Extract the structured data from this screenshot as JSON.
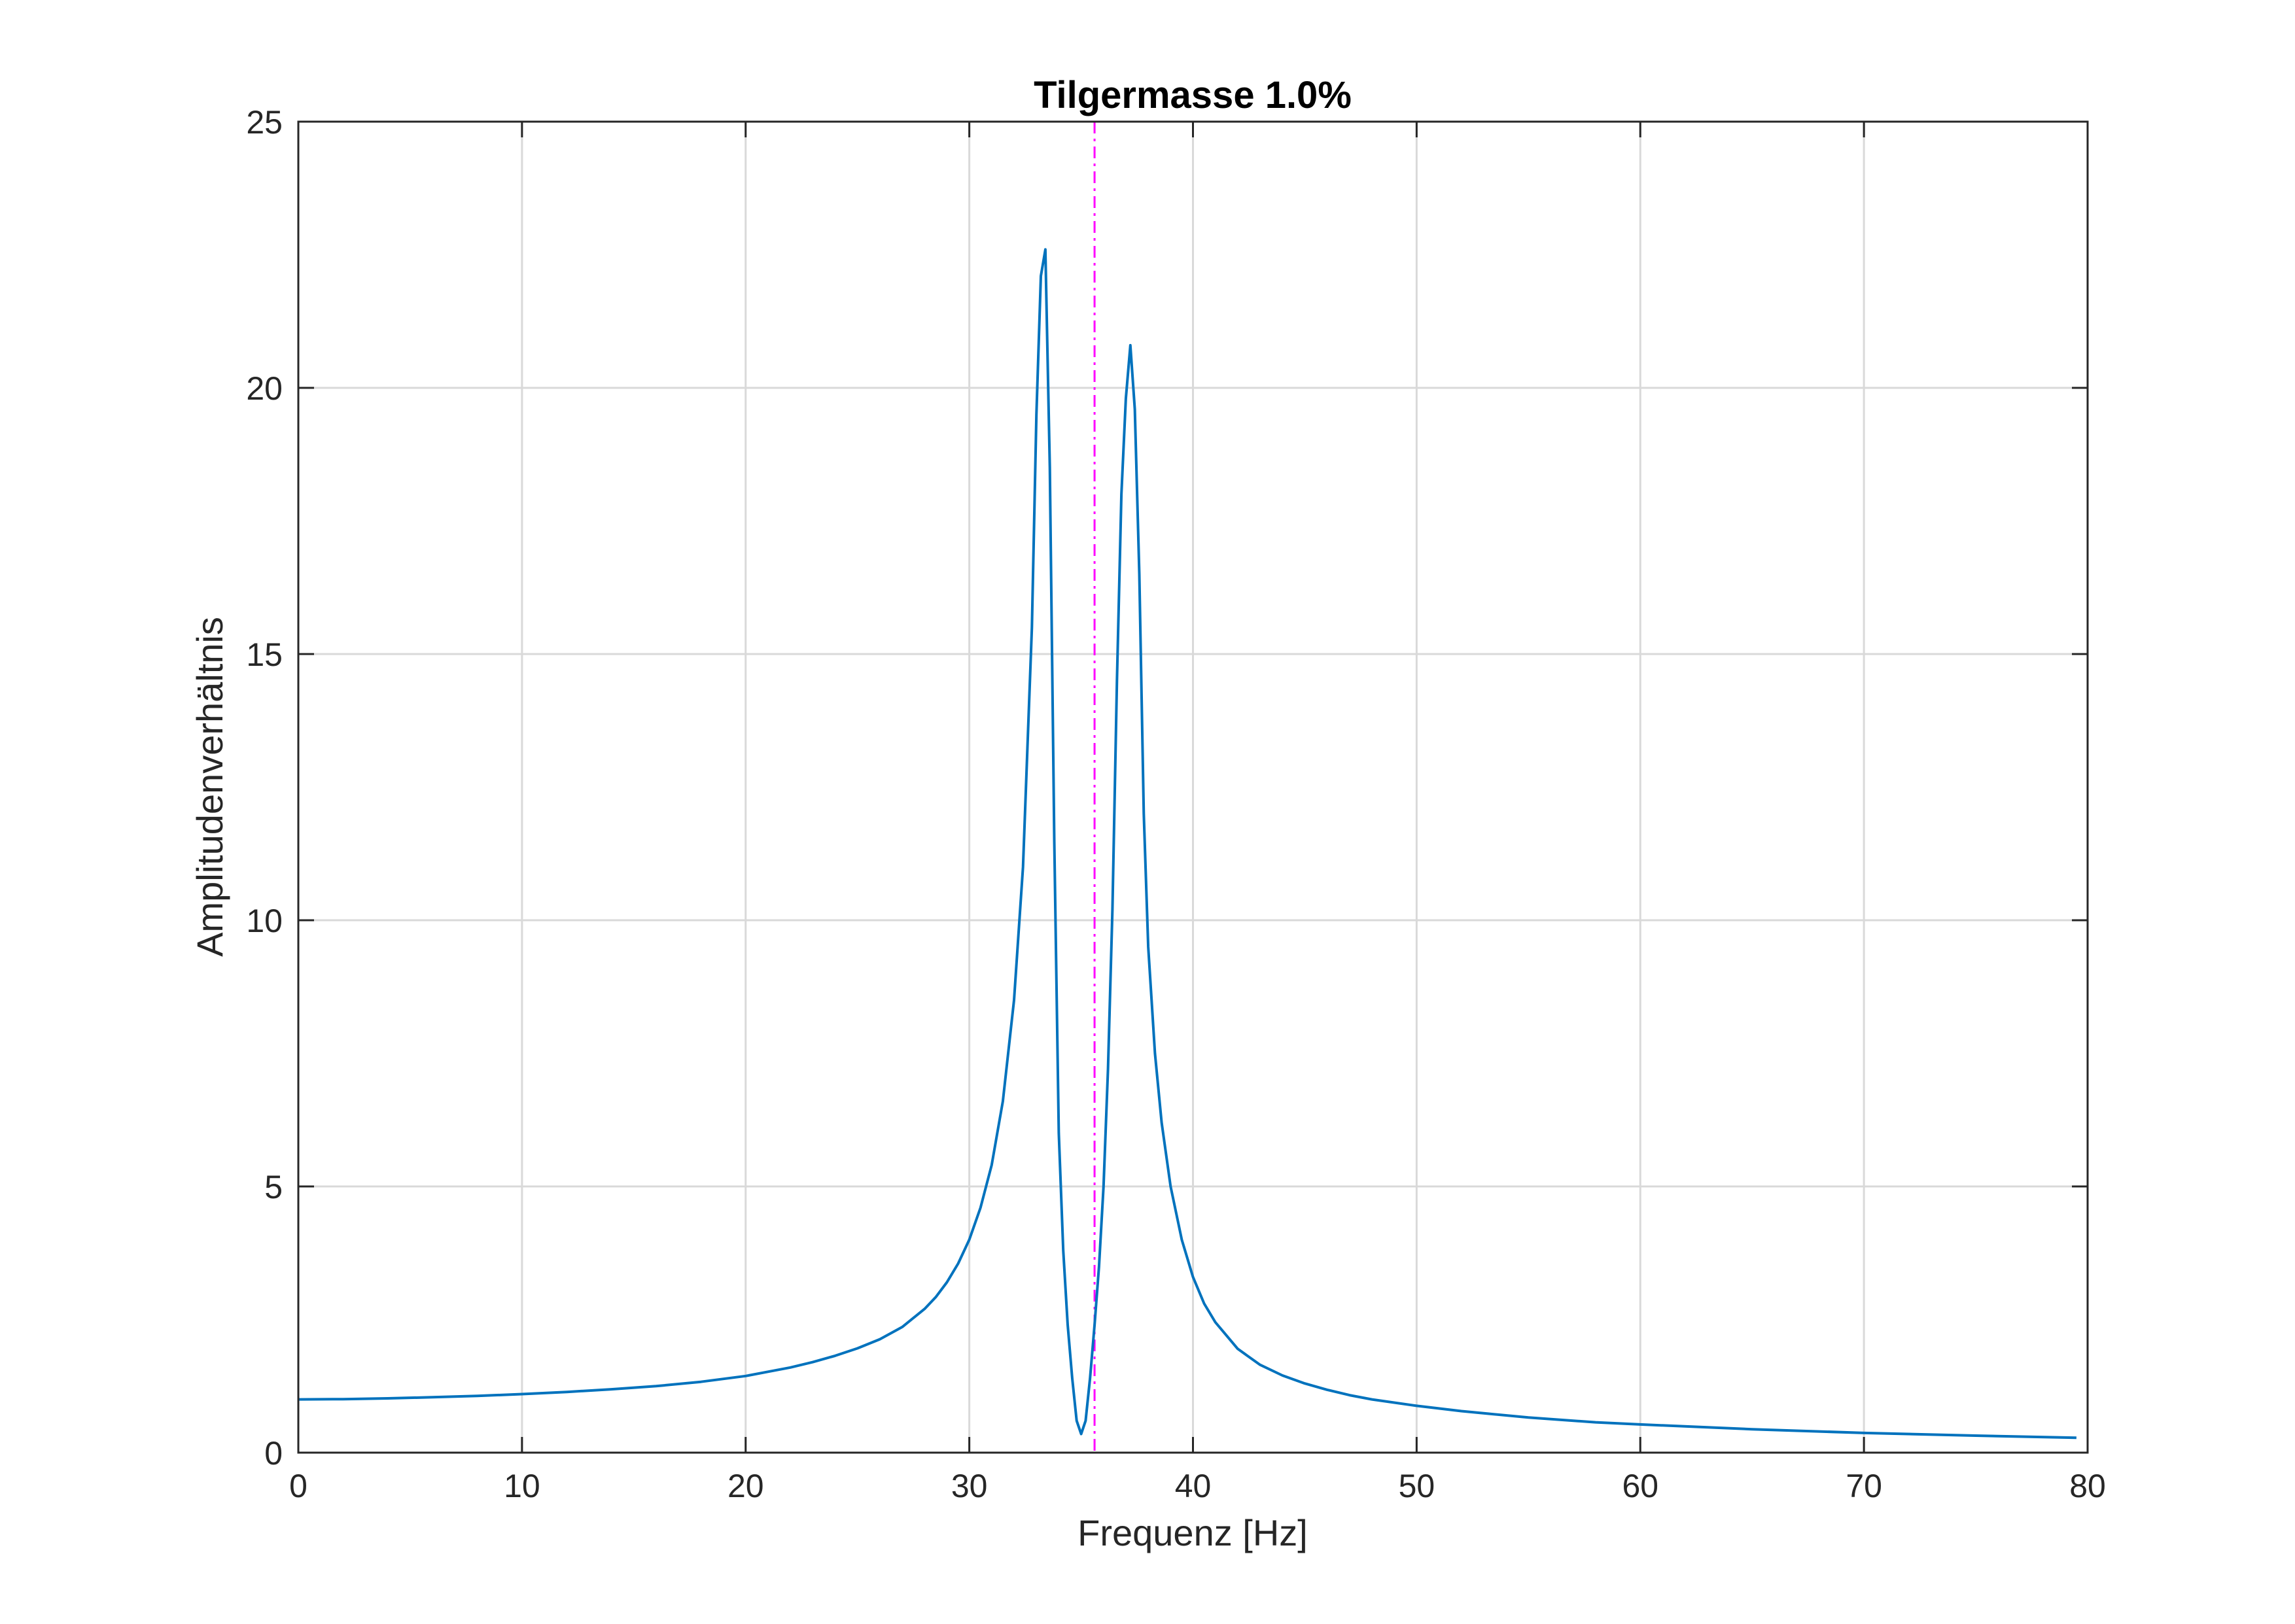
{
  "chart_data": {
    "type": "line",
    "title": "Tilgermasse 1.0%",
    "xlabel": "Frequenz [Hz]",
    "ylabel": "Amplitudenverhältnis",
    "xlim": [
      0,
      80
    ],
    "ylim": [
      0,
      25
    ],
    "xticks": [
      0,
      10,
      20,
      30,
      40,
      50,
      60,
      70,
      80
    ],
    "yticks": [
      0,
      5,
      10,
      15,
      20,
      25
    ],
    "xtick_labels": [
      "0",
      "10",
      "20",
      "30",
      "40",
      "50",
      "60",
      "70",
      "80"
    ],
    "ytick_labels": [
      "0",
      "5",
      "10",
      "15",
      "20",
      "25"
    ],
    "grid": true,
    "series": [
      {
        "color": "#0072BD",
        "x": [
          0,
          2,
          4,
          6,
          8,
          10,
          12,
          14,
          16,
          18,
          20,
          21,
          22,
          23,
          24,
          25,
          26,
          27,
          28,
          28.5,
          29,
          29.5,
          30,
          30.5,
          31,
          31.5,
          32,
          32.4,
          32.8,
          33.0,
          33.2,
          33.4,
          33.6,
          33.8,
          34.0,
          34.2,
          34.4,
          34.6,
          34.8,
          35.0,
          35.2,
          35.4,
          35.6,
          35.8,
          36.0,
          36.2,
          36.4,
          36.6,
          36.8,
          37.0,
          37.2,
          37.4,
          37.6,
          37.8,
          38.0,
          38.3,
          38.6,
          39.0,
          39.5,
          40,
          40.5,
          41,
          42,
          43,
          44,
          45,
          46,
          47,
          48,
          50,
          52,
          55,
          58,
          60,
          65,
          70,
          75,
          79.5
        ],
        "y": [
          1.0,
          1.005,
          1.02,
          1.04,
          1.065,
          1.1,
          1.14,
          1.19,
          1.25,
          1.33,
          1.44,
          1.52,
          1.6,
          1.7,
          1.82,
          1.96,
          2.13,
          2.36,
          2.7,
          2.92,
          3.2,
          3.55,
          4.0,
          4.6,
          5.4,
          6.6,
          8.5,
          11.0,
          15.5,
          19.5,
          22.1,
          22.6,
          18.5,
          11.5,
          6.0,
          3.8,
          2.4,
          1.4,
          0.6,
          0.35,
          0.6,
          1.4,
          2.4,
          3.5,
          5.0,
          7.2,
          10.2,
          14.5,
          18.0,
          19.8,
          20.8,
          19.6,
          16.5,
          12.0,
          9.5,
          7.5,
          6.2,
          5.0,
          4.0,
          3.3,
          2.8,
          2.45,
          1.95,
          1.65,
          1.45,
          1.3,
          1.18,
          1.08,
          1.0,
          0.88,
          0.78,
          0.66,
          0.57,
          0.53,
          0.44,
          0.37,
          0.32,
          0.28
        ]
      }
    ],
    "reference_lines": [
      {
        "orientation": "vertical",
        "x": 35.6,
        "color": "#FF00FF",
        "style": "dash-dot"
      }
    ]
  }
}
